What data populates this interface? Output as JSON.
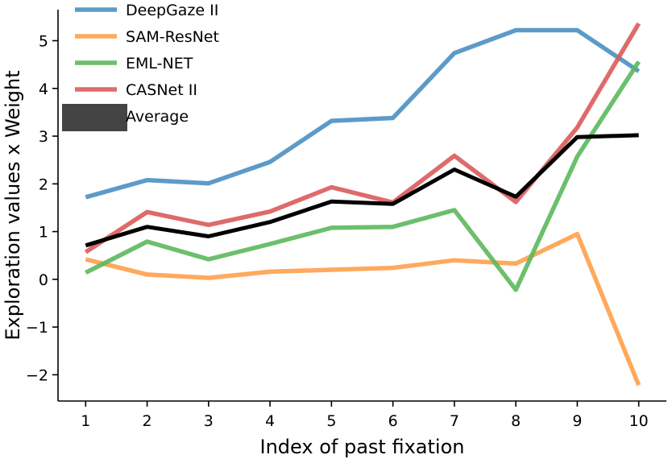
{
  "chart_data": {
    "type": "line",
    "xlabel": "Index of past fixation",
    "ylabel": "Exploration values x Weight",
    "x": [
      1,
      2,
      3,
      4,
      5,
      6,
      7,
      8,
      9,
      10
    ],
    "xticks": [
      "1",
      "2",
      "3",
      "4",
      "5",
      "6",
      "7",
      "8",
      "9",
      "10"
    ],
    "yticks": [
      -2,
      -1,
      0,
      1,
      2,
      3,
      4,
      5
    ],
    "ytick_labels": [
      "−2",
      "−1",
      "0",
      "1",
      "2",
      "3",
      "4",
      "5"
    ],
    "xlim": [
      0.55,
      10.45
    ],
    "ylim": [
      -2.55,
      5.65
    ],
    "grid": false,
    "legend_position": "top-left",
    "series": [
      {
        "name": "DeepGaze II",
        "color": "#4a90c2",
        "values": [
          1.72,
          2.08,
          2.01,
          2.46,
          3.32,
          3.38,
          4.74,
          5.22,
          5.22,
          4.36
        ]
      },
      {
        "name": "SAM-ResNet",
        "color": "#ffa04a",
        "values": [
          0.42,
          0.1,
          0.03,
          0.16,
          0.2,
          0.24,
          0.4,
          0.33,
          0.95,
          -2.22
        ]
      },
      {
        "name": "EML-NET",
        "color": "#5cb85c",
        "values": [
          0.14,
          0.79,
          0.42,
          0.74,
          1.08,
          1.1,
          1.45,
          -0.22,
          2.57,
          4.56
        ]
      },
      {
        "name": "CASNet II",
        "color": "#dc5a5a",
        "values": [
          0.57,
          1.41,
          1.14,
          1.42,
          1.93,
          1.61,
          2.59,
          1.62,
          3.18,
          5.36
        ]
      },
      {
        "name": "Average",
        "color": "#000000",
        "values": [
          0.71,
          1.1,
          0.9,
          1.2,
          1.63,
          1.58,
          2.3,
          1.73,
          2.98,
          3.02
        ]
      }
    ]
  }
}
